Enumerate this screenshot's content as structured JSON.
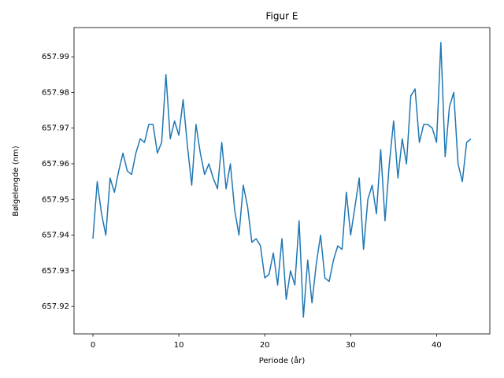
{
  "chart_data": {
    "type": "line",
    "title": "Figur E",
    "x_label": "Periode (år)",
    "y_label": "Bølgelengde (nm)",
    "x": [
      0,
      0.5,
      1,
      1.5,
      2,
      2.5,
      3,
      3.5,
      4,
      4.5,
      5,
      5.5,
      6,
      6.5,
      7,
      7.5,
      8,
      8.5,
      9,
      9.5,
      10,
      10.5,
      11,
      11.5,
      12,
      12.5,
      13,
      13.5,
      14,
      14.5,
      15,
      15.5,
      16,
      16.5,
      17,
      17.5,
      18,
      18.5,
      19,
      19.5,
      20,
      20.5,
      21,
      21.5,
      22,
      22.5,
      23,
      23.5,
      24,
      24.5,
      25,
      25.5,
      26,
      26.5,
      27,
      27.5,
      28,
      28.5,
      29,
      29.5,
      30,
      30.5,
      31,
      31.5,
      32,
      32.5,
      33,
      33.5,
      34,
      34.5,
      35,
      35.5,
      36,
      36.5,
      37,
      37.5,
      38,
      38.5,
      39,
      39.5,
      40,
      40.5,
      41,
      41.5,
      42,
      42.5,
      43,
      43.5,
      44
    ],
    "series": [
      {
        "name": "Bølgelengde",
        "color": "#1f77b4",
        "values": [
          657.939,
          657.955,
          657.946,
          657.94,
          657.956,
          657.952,
          657.958,
          657.963,
          657.958,
          657.957,
          657.963,
          657.967,
          657.966,
          657.971,
          657.971,
          657.963,
          657.966,
          657.985,
          657.967,
          657.972,
          657.968,
          657.978,
          657.965,
          657.954,
          657.971,
          657.963,
          657.957,
          657.96,
          657.956,
          657.953,
          657.966,
          657.953,
          657.96,
          657.947,
          657.94,
          657.954,
          657.948,
          657.938,
          657.939,
          657.937,
          657.928,
          657.929,
          657.935,
          657.926,
          657.939,
          657.922,
          657.93,
          657.926,
          657.944,
          657.917,
          657.933,
          657.921,
          657.932,
          657.94,
          657.928,
          657.927,
          657.933,
          657.937,
          657.936,
          657.952,
          657.94,
          657.948,
          657.956,
          657.936,
          657.95,
          657.954,
          657.946,
          657.964,
          657.944,
          657.96,
          657.972,
          657.956,
          657.967,
          657.96,
          657.979,
          657.981,
          657.966,
          657.971,
          657.971,
          657.97,
          657.966,
          657.994,
          657.962,
          657.976,
          657.98,
          657.96,
          657.955,
          657.966,
          657.967
        ]
      }
    ],
    "xlim": [
      -2.2,
      46.2
    ],
    "ylim": [
      657.9123,
      657.9982
    ],
    "xticks": [
      0,
      10,
      20,
      30,
      40
    ],
    "yticks": [
      657.92,
      657.93,
      657.94,
      657.95,
      657.96,
      657.97,
      657.98,
      657.99
    ]
  }
}
